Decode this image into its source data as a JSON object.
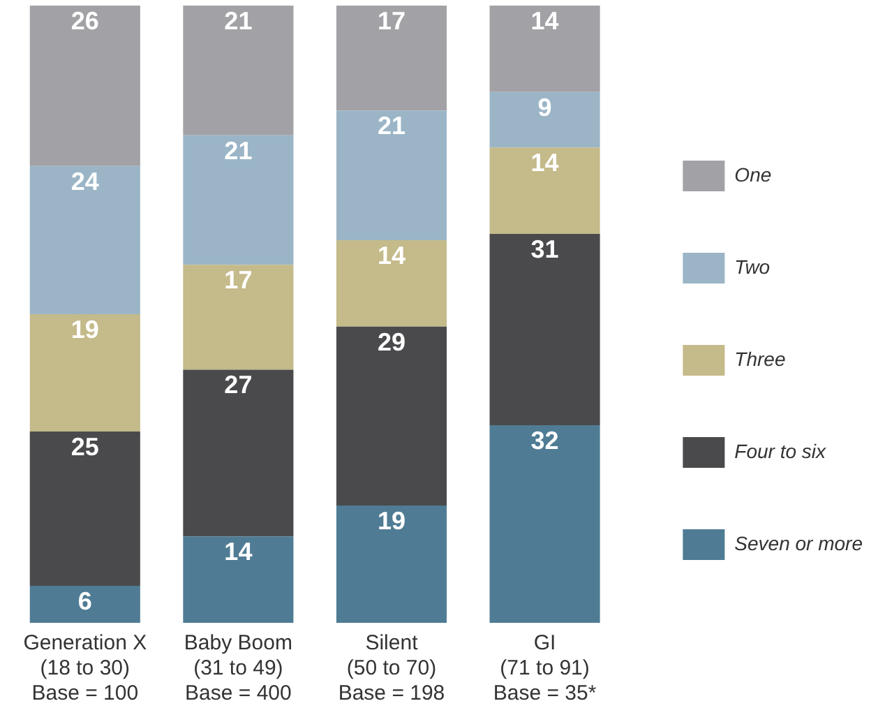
{
  "chart_data": {
    "type": "bar",
    "stacked": true,
    "data_labels": true,
    "legend": "right",
    "grid": false,
    "tick_labels": "x",
    "categories": [
      "Generation X\n(18 to 30)\nBase = 100",
      "Baby Boom\n(31 to 49)\nBase = 400",
      "Silent\n(50 to 70)\nBase = 198",
      "GI\n(71 to 91)\nBase = 35*"
    ],
    "series": [
      {
        "name": "Seven or more",
        "color": "#4f7c94",
        "values": [
          6,
          14,
          19,
          32
        ]
      },
      {
        "name": "Four to six",
        "color": "#4a4a4d",
        "values": [
          25,
          27,
          29,
          31
        ]
      },
      {
        "name": "Three",
        "color": "#c4ba8a",
        "values": [
          19,
          17,
          14,
          14
        ]
      },
      {
        "name": "Two",
        "color": "#9bb5c7",
        "values": [
          24,
          21,
          21,
          9
        ]
      },
      {
        "name": "One",
        "color": "#a2a2a6",
        "values": [
          26,
          21,
          17,
          14
        ]
      }
    ]
  }
}
